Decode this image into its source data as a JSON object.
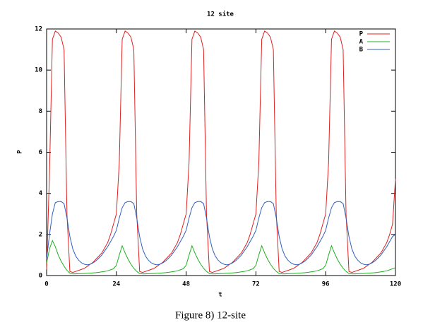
{
  "chart_data": {
    "type": "line",
    "title": "12 site",
    "xlabel": "t",
    "ylabel": "P",
    "x": [
      0,
      1,
      2,
      3,
      4,
      5,
      6,
      7,
      8,
      9,
      10,
      11,
      12,
      13,
      14,
      15,
      16,
      17,
      18,
      19,
      20,
      21,
      22,
      23,
      24,
      25,
      26,
      27,
      28,
      29,
      30,
      31,
      32,
      33,
      34,
      35,
      36,
      37,
      38,
      39,
      40,
      41,
      42,
      43,
      44,
      45,
      46,
      47,
      48,
      49,
      50,
      51,
      52,
      53,
      54,
      55,
      56,
      57,
      58,
      59,
      60,
      61,
      62,
      63,
      64,
      65,
      66,
      67,
      68,
      69,
      70,
      71,
      72,
      73,
      74,
      75,
      76,
      77,
      78,
      79,
      80,
      81,
      82,
      83,
      84,
      85,
      86,
      87,
      88,
      89,
      90,
      91,
      92,
      93,
      94,
      95,
      96,
      97,
      98,
      99,
      100,
      101,
      102,
      103,
      104,
      105,
      106,
      107,
      108,
      109,
      110,
      111,
      112,
      113,
      114,
      115,
      116,
      117,
      118,
      119,
      120
    ],
    "series": [
      {
        "name": "P",
        "color": "#e02020",
        "values": [
          0.3,
          5.0,
          11.5,
          11.9,
          11.8,
          11.6,
          11.0,
          3.0,
          0.2,
          0.15,
          0.2,
          0.25,
          0.3,
          0.35,
          0.45,
          0.55,
          0.65,
          0.8,
          0.95,
          1.1,
          1.35,
          1.6,
          2.0,
          2.5,
          3.0,
          5.5,
          11.5,
          11.9,
          11.8,
          11.6,
          11.0,
          3.0,
          0.2,
          0.15,
          0.2,
          0.25,
          0.3,
          0.35,
          0.45,
          0.55,
          0.65,
          0.8,
          0.95,
          1.1,
          1.35,
          1.6,
          2.0,
          2.5,
          3.0,
          5.5,
          11.5,
          11.9,
          11.8,
          11.6,
          11.0,
          3.0,
          0.2,
          0.15,
          0.2,
          0.25,
          0.3,
          0.35,
          0.45,
          0.55,
          0.65,
          0.8,
          0.95,
          1.1,
          1.35,
          1.6,
          2.0,
          2.5,
          3.0,
          5.5,
          11.5,
          11.9,
          11.8,
          11.6,
          11.0,
          3.0,
          0.2,
          0.15,
          0.2,
          0.25,
          0.3,
          0.35,
          0.45,
          0.55,
          0.65,
          0.8,
          0.95,
          1.1,
          1.35,
          1.6,
          2.0,
          2.5,
          3.0,
          5.5,
          11.5,
          11.9,
          11.8,
          11.6,
          11.0,
          3.0,
          0.2,
          0.15,
          0.2,
          0.25,
          0.3,
          0.35,
          0.45,
          0.55,
          0.65,
          0.8,
          0.95,
          1.1,
          1.35,
          1.6,
          2.0,
          2.5,
          4.7
        ]
      },
      {
        "name": "A",
        "color": "#20b020",
        "values": [
          0.6,
          1.3,
          1.7,
          1.4,
          1.0,
          0.7,
          0.45,
          0.25,
          0.12,
          0.08,
          0.08,
          0.09,
          0.1,
          0.1,
          0.11,
          0.12,
          0.13,
          0.14,
          0.16,
          0.18,
          0.2,
          0.23,
          0.28,
          0.33,
          0.5,
          1.0,
          1.45,
          1.1,
          0.8,
          0.55,
          0.35,
          0.2,
          0.1,
          0.08,
          0.08,
          0.09,
          0.1,
          0.1,
          0.11,
          0.12,
          0.13,
          0.14,
          0.16,
          0.18,
          0.2,
          0.23,
          0.28,
          0.33,
          0.5,
          1.0,
          1.45,
          1.1,
          0.8,
          0.55,
          0.35,
          0.2,
          0.1,
          0.08,
          0.08,
          0.09,
          0.1,
          0.1,
          0.11,
          0.12,
          0.13,
          0.14,
          0.16,
          0.18,
          0.2,
          0.23,
          0.28,
          0.33,
          0.5,
          1.0,
          1.45,
          1.1,
          0.8,
          0.55,
          0.35,
          0.2,
          0.1,
          0.08,
          0.08,
          0.09,
          0.1,
          0.1,
          0.11,
          0.12,
          0.13,
          0.14,
          0.16,
          0.18,
          0.2,
          0.23,
          0.28,
          0.33,
          0.5,
          1.0,
          1.45,
          1.1,
          0.8,
          0.55,
          0.35,
          0.2,
          0.1,
          0.08,
          0.08,
          0.09,
          0.1,
          0.1,
          0.11,
          0.12,
          0.13,
          0.14,
          0.16,
          0.18,
          0.2,
          0.23,
          0.28,
          0.33,
          0.38
        ]
      },
      {
        "name": "B",
        "color": "#3060c0",
        "values": [
          0.8,
          2.0,
          3.0,
          3.55,
          3.6,
          3.6,
          3.5,
          2.8,
          1.9,
          1.3,
          0.95,
          0.75,
          0.62,
          0.55,
          0.52,
          0.55,
          0.62,
          0.72,
          0.85,
          1.0,
          1.2,
          1.4,
          1.65,
          1.9,
          2.2,
          2.8,
          3.3,
          3.55,
          3.6,
          3.6,
          3.5,
          2.8,
          1.9,
          1.3,
          0.95,
          0.75,
          0.62,
          0.55,
          0.52,
          0.55,
          0.62,
          0.72,
          0.85,
          1.0,
          1.2,
          1.4,
          1.65,
          1.9,
          2.2,
          2.8,
          3.3,
          3.55,
          3.6,
          3.6,
          3.5,
          2.8,
          1.9,
          1.3,
          0.95,
          0.75,
          0.62,
          0.55,
          0.52,
          0.55,
          0.62,
          0.72,
          0.85,
          1.0,
          1.2,
          1.4,
          1.65,
          1.9,
          2.2,
          2.8,
          3.3,
          3.55,
          3.6,
          3.6,
          3.5,
          2.8,
          1.9,
          1.3,
          0.95,
          0.75,
          0.62,
          0.55,
          0.52,
          0.55,
          0.62,
          0.72,
          0.85,
          1.0,
          1.2,
          1.4,
          1.65,
          1.9,
          2.2,
          2.8,
          3.3,
          3.55,
          3.6,
          3.6,
          3.5,
          2.8,
          1.9,
          1.3,
          0.95,
          0.75,
          0.62,
          0.55,
          0.52,
          0.55,
          0.62,
          0.72,
          0.85,
          1.0,
          1.2,
          1.4,
          1.65,
          1.9,
          2.0
        ]
      }
    ],
    "xlim": [
      0,
      120
    ],
    "xticks": [
      0,
      24,
      48,
      72,
      96,
      120
    ],
    "ylim": [
      0,
      12
    ],
    "yticks": [
      0,
      2,
      4,
      6,
      8,
      10,
      12
    ],
    "grid": false,
    "legend": "top-right"
  },
  "caption": "Figure 8) 12-site"
}
